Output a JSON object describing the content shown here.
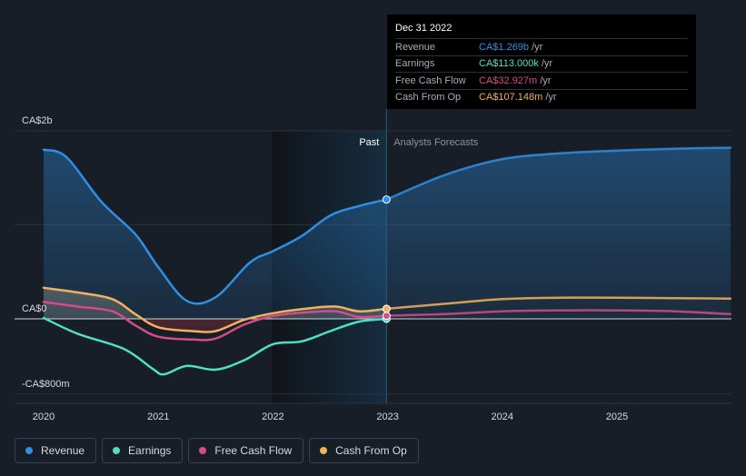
{
  "chart_data": {
    "type": "line",
    "y_unit": "CA$ millions",
    "ylim": [
      -800,
      2000
    ],
    "y_tick_labels": [
      "CA$2b",
      "CA$0",
      "-CA$800m"
    ],
    "x_tick_labels": [
      "2020",
      "2021",
      "2022",
      "2023",
      "2024",
      "2025"
    ],
    "divider_x": 2022.99,
    "past_label": "Past",
    "forecast_label": "Analysts Forecasts",
    "series": [
      {
        "name": "Revenue",
        "color": "#2f8fe3",
        "points": [
          [
            2020.0,
            1800
          ],
          [
            2020.2,
            1720
          ],
          [
            2020.5,
            1250
          ],
          [
            2020.8,
            900
          ],
          [
            2021.0,
            550
          ],
          [
            2021.25,
            190
          ],
          [
            2021.5,
            230
          ],
          [
            2021.8,
            600
          ],
          [
            2022.0,
            720
          ],
          [
            2022.25,
            880
          ],
          [
            2022.5,
            1100
          ],
          [
            2022.75,
            1200
          ],
          [
            2022.99,
            1269
          ],
          [
            2023.5,
            1530
          ],
          [
            2024.0,
            1700
          ],
          [
            2024.5,
            1760
          ],
          [
            2025.0,
            1790
          ],
          [
            2025.5,
            1810
          ],
          [
            2025.99,
            1820
          ]
        ]
      },
      {
        "name": "Earnings",
        "color": "#4fe0c2",
        "points": [
          [
            2020.0,
            10
          ],
          [
            2020.3,
            -160
          ],
          [
            2020.7,
            -320
          ],
          [
            2020.95,
            -530
          ],
          [
            2021.05,
            -590
          ],
          [
            2021.25,
            -500
          ],
          [
            2021.5,
            -540
          ],
          [
            2021.75,
            -440
          ],
          [
            2022.0,
            -270
          ],
          [
            2022.25,
            -240
          ],
          [
            2022.5,
            -130
          ],
          [
            2022.75,
            -30
          ],
          [
            2022.99,
            0.113
          ]
        ]
      },
      {
        "name": "Free Cash Flow",
        "color": "#d54c8a",
        "points": [
          [
            2020.0,
            180
          ],
          [
            2020.3,
            130
          ],
          [
            2020.6,
            80
          ],
          [
            2020.8,
            -70
          ],
          [
            2021.0,
            -190
          ],
          [
            2021.3,
            -220
          ],
          [
            2021.5,
            -210
          ],
          [
            2021.75,
            -60
          ],
          [
            2022.0,
            30
          ],
          [
            2022.3,
            70
          ],
          [
            2022.55,
            80
          ],
          [
            2022.75,
            20
          ],
          [
            2022.99,
            33
          ],
          [
            2023.5,
            50
          ],
          [
            2024.0,
            80
          ],
          [
            2024.5,
            90
          ],
          [
            2025.0,
            90
          ],
          [
            2025.5,
            80
          ],
          [
            2025.99,
            50
          ]
        ]
      },
      {
        "name": "Cash From Op",
        "color": "#f2b15c",
        "points": [
          [
            2020.0,
            330
          ],
          [
            2020.3,
            280
          ],
          [
            2020.6,
            210
          ],
          [
            2020.8,
            50
          ],
          [
            2021.0,
            -90
          ],
          [
            2021.3,
            -130
          ],
          [
            2021.5,
            -130
          ],
          [
            2021.75,
            -10
          ],
          [
            2022.0,
            60
          ],
          [
            2022.3,
            110
          ],
          [
            2022.55,
            130
          ],
          [
            2022.75,
            80
          ],
          [
            2022.99,
            107
          ],
          [
            2023.5,
            160
          ],
          [
            2024.0,
            210
          ],
          [
            2024.5,
            225
          ],
          [
            2025.0,
            225
          ],
          [
            2025.5,
            220
          ],
          [
            2025.99,
            215
          ]
        ]
      }
    ]
  },
  "tooltip": {
    "date": "Dec 31 2022",
    "rows": [
      {
        "label": "Revenue",
        "value": "CA$1.269b",
        "unit": "/yr",
        "color": "#2f8fe3"
      },
      {
        "label": "Earnings",
        "value": "CA$113.000k",
        "unit": "/yr",
        "color": "#4fe0c2"
      },
      {
        "label": "Free Cash Flow",
        "value": "CA$32.927m",
        "unit": "/yr",
        "color": "#d54c8a"
      },
      {
        "label": "Cash From Op",
        "value": "CA$107.148m",
        "unit": "/yr",
        "color": "#f2b15c"
      }
    ]
  },
  "legend": [
    {
      "label": "Revenue",
      "color": "#2f8fe3"
    },
    {
      "label": "Earnings",
      "color": "#4fe0c2"
    },
    {
      "label": "Free Cash Flow",
      "color": "#d54c8a"
    },
    {
      "label": "Cash From Op",
      "color": "#f2b15c"
    }
  ]
}
